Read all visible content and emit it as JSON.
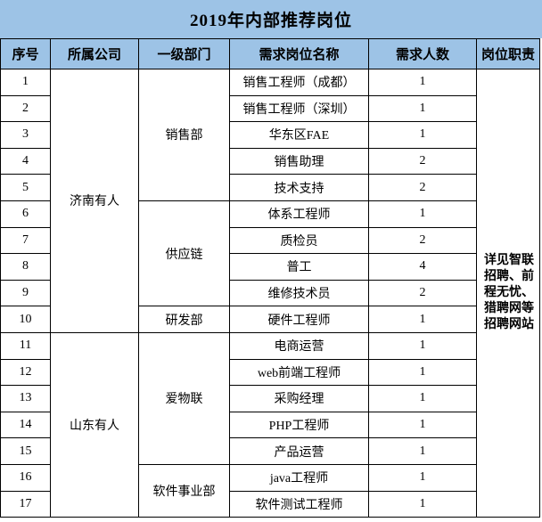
{
  "title": "2019年内部推荐岗位",
  "colors": {
    "header_bg": "#9DC3E6",
    "border": "#000000",
    "text": "#000000",
    "background": "#FFFFFF"
  },
  "table": {
    "headers": [
      "序号",
      "所属公司",
      "一级部门",
      "需求岗位名称",
      "需求人数",
      "岗位职责"
    ],
    "companies": [
      {
        "name": "济南有人",
        "rowspan": 10
      },
      {
        "name": "山东有人",
        "rowspan": 7
      }
    ],
    "departments": [
      {
        "name": "销售部",
        "rowspan": 5
      },
      {
        "name": "供应链",
        "rowspan": 4
      },
      {
        "name": "研发部",
        "rowspan": 1
      },
      {
        "name": "爱物联",
        "rowspan": 5
      },
      {
        "name": "软件事业部",
        "rowspan": 2
      }
    ],
    "rows": [
      {
        "no": "1",
        "position": "销售工程师（成都）",
        "count": "1"
      },
      {
        "no": "2",
        "position": "销售工程师（深圳）",
        "count": "1"
      },
      {
        "no": "3",
        "position": "华东区FAE",
        "count": "1"
      },
      {
        "no": "4",
        "position": "销售助理",
        "count": "2"
      },
      {
        "no": "5",
        "position": "技术支持",
        "count": "2"
      },
      {
        "no": "6",
        "position": "体系工程师",
        "count": "1"
      },
      {
        "no": "7",
        "position": "质检员",
        "count": "2"
      },
      {
        "no": "8",
        "position": "普工",
        "count": "4"
      },
      {
        "no": "9",
        "position": "维修技术员",
        "count": "2"
      },
      {
        "no": "10",
        "position": "硬件工程师",
        "count": "1"
      },
      {
        "no": "11",
        "position": "电商运营",
        "count": "1"
      },
      {
        "no": "12",
        "position": "web前端工程师",
        "count": "1"
      },
      {
        "no": "13",
        "position": "采购经理",
        "count": "1"
      },
      {
        "no": "14",
        "position": "PHP工程师",
        "count": "1"
      },
      {
        "no": "15",
        "position": "产品运营",
        "count": "1"
      },
      {
        "no": "16",
        "position": "java工程师",
        "count": "1"
      },
      {
        "no": "17",
        "position": "软件测试工程师",
        "count": "1"
      }
    ],
    "duty": "详见智联招聘、前程无忧、猎聘网等招聘网站"
  }
}
